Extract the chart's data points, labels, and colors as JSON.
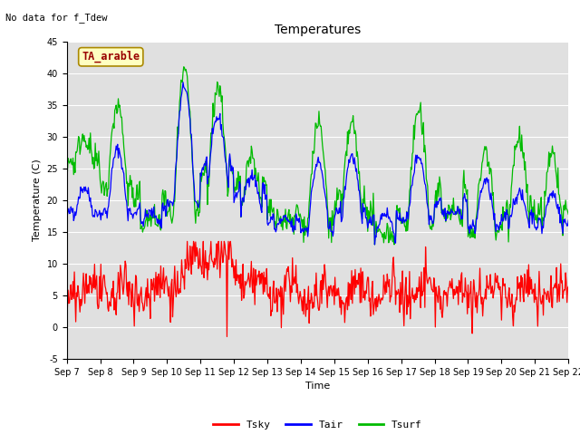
{
  "title": "Temperatures",
  "xlabel": "Time",
  "ylabel": "Temperature (C)",
  "note": "No data for f_Tdew",
  "label_box": "TA_arable",
  "ylim": [
    -5,
    45
  ],
  "xlim": [
    0,
    360
  ],
  "tick_labels": [
    "Sep 7",
    "Sep 8",
    "Sep 9",
    "Sep 10",
    "Sep 11",
    "Sep 12",
    "Sep 13",
    "Sep 14",
    "Sep 15",
    "Sep 16",
    "Sep 17",
    "Sep 18",
    "Sep 19",
    "Sep 20",
    "Sep 21",
    "Sep 22"
  ],
  "tick_positions": [
    0,
    24,
    48,
    72,
    96,
    120,
    144,
    168,
    192,
    216,
    240,
    264,
    288,
    312,
    336,
    360
  ],
  "yticks": [
    -5,
    0,
    5,
    10,
    15,
    20,
    25,
    30,
    35,
    40,
    45
  ],
  "color_tsky": "#FF0000",
  "color_tair": "#0000FF",
  "color_tsurf": "#00BB00",
  "bg_color": "#E0E0E0",
  "legend_tsky": "Tsky",
  "legend_tair": "Tair",
  "legend_tsurf": "Tsurf",
  "title_fontsize": 10,
  "tick_fontsize": 7,
  "label_fontsize": 8,
  "legend_fontsize": 8
}
